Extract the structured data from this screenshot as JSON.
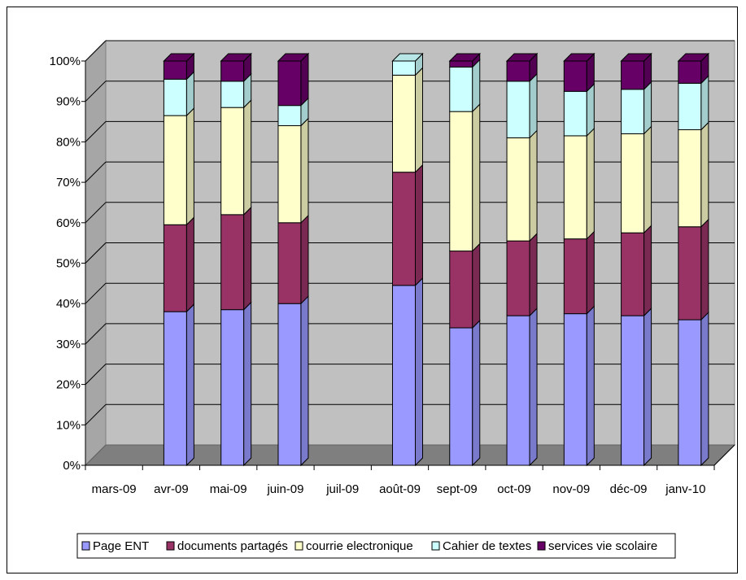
{
  "chart_data": {
    "type": "bar",
    "stacked": "percent",
    "three_d": true,
    "title": "",
    "xlabel": "",
    "ylabel": "",
    "ylim": [
      0,
      100
    ],
    "y_ticks": [
      "0%",
      "10%",
      "20%",
      "30%",
      "40%",
      "50%",
      "60%",
      "70%",
      "80%",
      "90%",
      "100%"
    ],
    "grid": true,
    "legend_position": "bottom",
    "categories": [
      "mars-09",
      "avr-09",
      "mai-09",
      "juin-09",
      "juil-09",
      "août-09",
      "sept-09",
      "oct-09",
      "nov-09",
      "déc-09",
      "janv-10"
    ],
    "series": [
      {
        "name": "Page ENT",
        "color": "#9999ff",
        "values": [
          null,
          38,
          38.5,
          40,
          null,
          44.5,
          34,
          37,
          37.5,
          37,
          36
        ]
      },
      {
        "name": "documents partagés",
        "color": "#993366",
        "values": [
          null,
          21.5,
          23.5,
          20,
          null,
          28,
          19,
          18.5,
          18.5,
          20.5,
          23
        ]
      },
      {
        "name": "courrie electronique",
        "color": "#ffffcc",
        "values": [
          null,
          27,
          26.5,
          24,
          null,
          24,
          34.5,
          25.5,
          25.5,
          24.5,
          24
        ]
      },
      {
        "name": "Cahier de textes",
        "color": "#ccffff",
        "values": [
          null,
          9,
          6.5,
          5,
          null,
          3.5,
          11,
          14,
          11,
          11,
          11.5
        ]
      },
      {
        "name": "services vie scolaire",
        "color": "#660066",
        "values": [
          null,
          4.5,
          5,
          11,
          null,
          0,
          1.5,
          5,
          7.5,
          7,
          5.5
        ]
      }
    ]
  }
}
